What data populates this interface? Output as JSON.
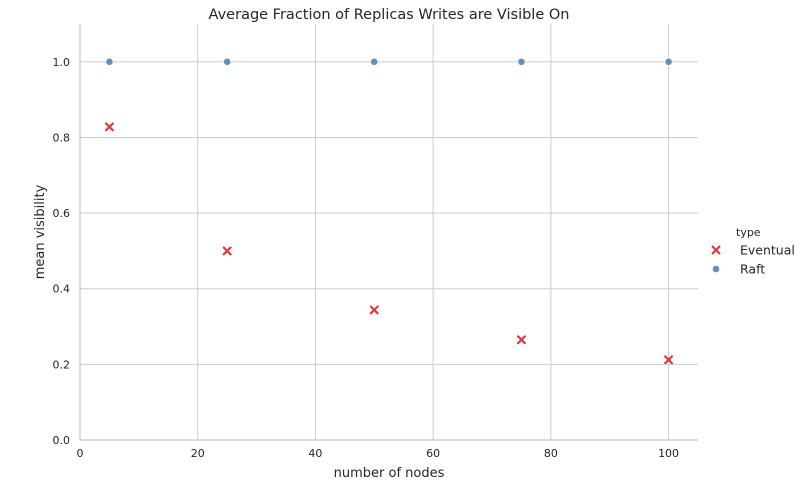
{
  "chart_data": {
    "type": "scatter",
    "title": "Average Fraction of Replicas Writes are Visible On",
    "xlabel": "number of nodes",
    "ylabel": "mean visibility",
    "xlim": [
      0,
      105
    ],
    "ylim": [
      0,
      1.1
    ],
    "xticks": [
      "0",
      "20",
      "40",
      "60",
      "80",
      "100"
    ],
    "yticks": [
      "0.0",
      "0.2",
      "0.4",
      "0.6",
      "0.8",
      "1.0"
    ],
    "grid": true,
    "legend": {
      "title": "type",
      "placement": "right"
    },
    "series": [
      {
        "name": "Eventual",
        "marker": "x",
        "color": "#e5383b",
        "points": [
          {
            "x": 5,
            "y": 0.828
          },
          {
            "x": 25,
            "y": 0.5
          },
          {
            "x": 50,
            "y": 0.344
          },
          {
            "x": 75,
            "y": 0.265
          },
          {
            "x": 100,
            "y": 0.212
          }
        ]
      },
      {
        "name": "Raft",
        "marker": "circle",
        "color": "#4f86b8",
        "points": [
          {
            "x": 5,
            "y": 1.0
          },
          {
            "x": 25,
            "y": 1.0
          },
          {
            "x": 50,
            "y": 1.0
          },
          {
            "x": 75,
            "y": 1.0
          },
          {
            "x": 100,
            "y": 1.0
          }
        ]
      }
    ]
  }
}
